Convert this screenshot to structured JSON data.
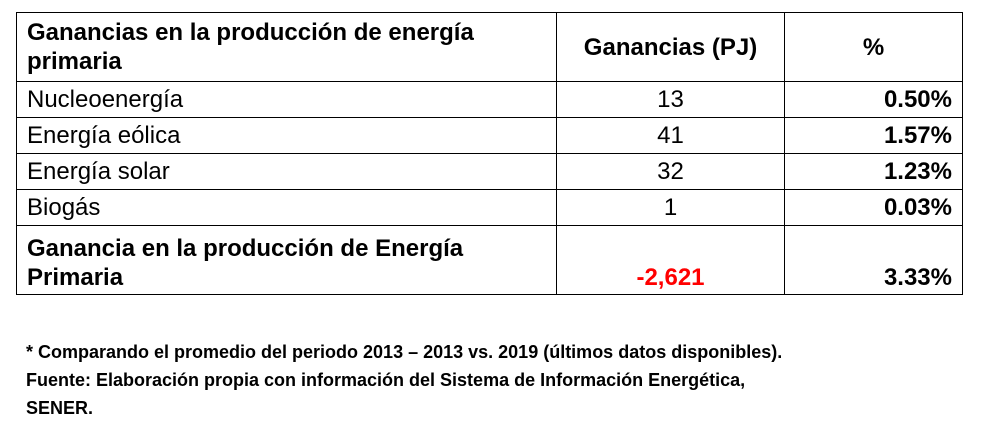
{
  "table": {
    "headers": {
      "label": "Ganancias en la producción de energía primaria",
      "value": "Ganancias (PJ)",
      "percent": "%"
    },
    "rows": [
      {
        "label": "Nucleoenergía",
        "value": "13",
        "percent": "0.50%"
      },
      {
        "label": "Energía eólica",
        "value": "41",
        "percent": "1.57%"
      },
      {
        "label": "Energía solar",
        "value": "32",
        "percent": "1.23%"
      },
      {
        "label": "Biogás",
        "value": "1",
        "percent": "0.03%"
      }
    ],
    "total": {
      "label": "Ganancia en la producción de Energía Primaria",
      "value": "-2,621",
      "percent": "3.33%"
    }
  },
  "notes": {
    "line1": "* Comparando el promedio del periodo 2013 – 2013 vs. 2019 (últimos datos disponibles).",
    "line2": "Fuente: Elaboración propia con información del Sistema de Información Energética,",
    "line3": "SENER."
  },
  "colors": {
    "negative_value": "#ff0000",
    "text": "#000000",
    "border": "#000000"
  }
}
